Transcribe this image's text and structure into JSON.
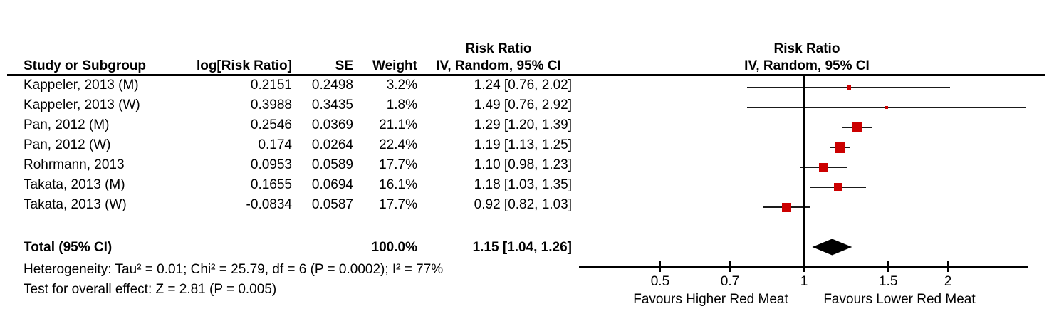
{
  "header": {
    "col_study": "Study or Subgroup",
    "col_logrr": "log[Risk Ratio]",
    "col_se": "SE",
    "col_weight": "Weight",
    "table_rr_line1": "Risk Ratio",
    "table_rr_line2": "IV, Random, 95% CI",
    "plot_rr_line1": "Risk Ratio",
    "plot_rr_line2": "IV, Random, 95% CI"
  },
  "total": {
    "label": "Total (95% CI)",
    "weight": "100.0%",
    "rr_text": "1.15 [1.04, 1.26]",
    "rr": 1.15,
    "ci_low": 1.04,
    "ci_high": 1.26
  },
  "footnotes": {
    "heterogeneity": "Heterogeneity: Tau² = 0.01; Chi² = 25.79, df = 6 (P = 0.0002); I² = 77%",
    "overall_effect": "Test for overall effect: Z = 2.81 (P = 0.005)"
  },
  "axis": {
    "label_left": "Favours Higher Red Meat",
    "label_right": "Favours Lower Red Meat"
  },
  "colors": {
    "square": "#cc0000",
    "line": "#1a1a1a",
    "diamond": "#000000"
  },
  "chart_data": {
    "type": "forest",
    "effect_measure": "Risk Ratio",
    "model": "IV, Random, 95% CI",
    "x_scale": "log",
    "x_ticks": [
      "0.5",
      "0.7",
      "1",
      "1.5",
      "2"
    ],
    "x_tick_values": [
      0.5,
      0.7,
      1,
      1.5,
      2
    ],
    "x_axis_range": [
      0.34,
      2.94
    ],
    "null_line": 1,
    "studies": [
      {
        "study": "Kappeler, 2013 (M)",
        "log_rr": "0.2151",
        "se": "0.2498",
        "weight": "3.2%",
        "weight_pct": 3.2,
        "rr_text": "1.24 [0.76, 2.02]",
        "rr": 1.24,
        "ci_low": 0.76,
        "ci_high": 2.02
      },
      {
        "study": "Kappeler, 2013 (W)",
        "log_rr": "0.3988",
        "se": "0.3435",
        "weight": "1.8%",
        "weight_pct": 1.8,
        "rr_text": "1.49 [0.76, 2.92]",
        "rr": 1.49,
        "ci_low": 0.76,
        "ci_high": 2.92
      },
      {
        "study": "Pan, 2012 (M)",
        "log_rr": "0.2546",
        "se": "0.0369",
        "weight": "21.1%",
        "weight_pct": 21.1,
        "rr_text": "1.29 [1.20, 1.39]",
        "rr": 1.29,
        "ci_low": 1.2,
        "ci_high": 1.39
      },
      {
        "study": "Pan, 2012 (W)",
        "log_rr": "0.174",
        "se": "0.0264",
        "weight": "22.4%",
        "weight_pct": 22.4,
        "rr_text": "1.19 [1.13, 1.25]",
        "rr": 1.19,
        "ci_low": 1.13,
        "ci_high": 1.25
      },
      {
        "study": "Rohrmann, 2013",
        "log_rr": "0.0953",
        "se": "0.0589",
        "weight": "17.7%",
        "weight_pct": 17.7,
        "rr_text": "1.10 [0.98, 1.23]",
        "rr": 1.1,
        "ci_low": 0.98,
        "ci_high": 1.23
      },
      {
        "study": "Takata, 2013 (M)",
        "log_rr": "0.1655",
        "se": "0.0694",
        "weight": "16.1%",
        "weight_pct": 16.1,
        "rr_text": "1.18 [1.03, 1.35]",
        "rr": 1.18,
        "ci_low": 1.03,
        "ci_high": 1.35
      },
      {
        "study": "Takata, 2013 (W)",
        "log_rr": "-0.0834",
        "se": "0.0587",
        "weight": "17.7%",
        "weight_pct": 17.7,
        "rr_text": "0.92 [0.82, 1.03]",
        "rr": 0.92,
        "ci_low": 0.82,
        "ci_high": 1.03
      }
    ],
    "total": {
      "label": "Total (95% CI)",
      "weight": "100.0%",
      "rr_text": "1.15 [1.04, 1.26]",
      "rr": 1.15,
      "ci_low": 1.04,
      "ci_high": 1.26
    },
    "heterogeneity": {
      "tau2": 0.01,
      "chi2": 25.79,
      "df": 6,
      "p": 0.0002,
      "i2_pct": 77
    },
    "overall_effect": {
      "z": 2.81,
      "p": 0.005
    },
    "footer_left_label": "Favours Higher Red Meat",
    "footer_right_label": "Favours Lower Red Meat"
  }
}
